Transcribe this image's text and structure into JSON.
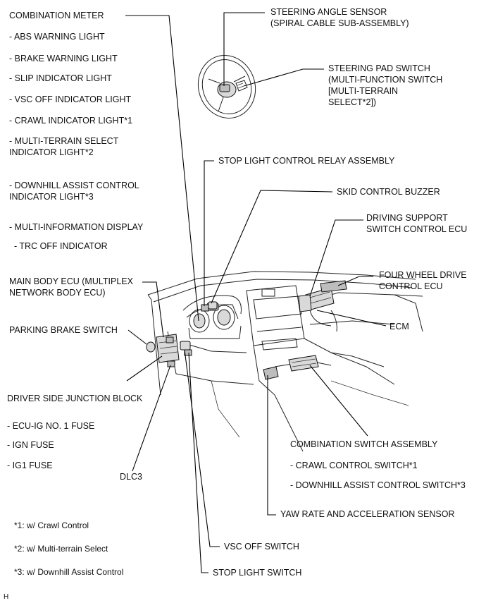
{
  "labels": {
    "combination_meter": "COMBINATION METER",
    "abs_warning": "- ABS WARNING LIGHT",
    "brake_warning": "- BRAKE WARNING LIGHT",
    "slip_indicator": "- SLIP INDICATOR LIGHT",
    "vsc_off_indicator": "- VSC OFF INDICATOR LIGHT",
    "crawl_indicator": "- CRAWL INDICATOR LIGHT*1",
    "mts_indicator_1": "- MULTI-TERRAIN SELECT",
    "mts_indicator_2": "INDICATOR LIGHT*2",
    "dac_indicator_1": "- DOWNHILL ASSIST CONTROL",
    "dac_indicator_2": "INDICATOR LIGHT*3",
    "multi_info": "- MULTI-INFORMATION DISPLAY",
    "trc_off": "- TRC OFF INDICATOR",
    "main_body_ecu_1": "MAIN BODY ECU (MULTIPLEX",
    "main_body_ecu_2": "NETWORK BODY ECU)",
    "parking_brake": "PARKING BRAKE SWITCH",
    "driver_jb": "DRIVER SIDE JUNCTION BLOCK",
    "ecu_ig_fuse": "- ECU-IG NO. 1 FUSE",
    "ign_fuse": "- IGN FUSE",
    "ig1_fuse": "- IG1 FUSE",
    "dlc3": "DLC3",
    "note1": "*1: w/ Crawl Control",
    "note2": "*2: w/ Multi-terrain Select",
    "note3": "*3: w/ Downhill Assist Control",
    "steering_angle_1": "STEERING ANGLE SENSOR",
    "steering_angle_2": "(SPIRAL CABLE SUB-ASSEMBLY)",
    "steering_pad_1": "STEERING PAD SWITCH",
    "steering_pad_2": "(MULTI-FUNCTION SWITCH",
    "steering_pad_3": "[MULTI-TERRAIN",
    "steering_pad_4": "SELECT*2])",
    "stop_light_relay": "STOP LIGHT CONTROL RELAY ASSEMBLY",
    "skid_buzzer": "SKID CONTROL BUZZER",
    "driving_support_1": "DRIVING SUPPORT",
    "driving_support_2": "SWITCH CONTROL ECU",
    "four_wd_1": "FOUR WHEEL DRIVE",
    "four_wd_2": "CONTROL ECU",
    "ecm": "ECM",
    "combo_switch": "COMBINATION SWITCH ASSEMBLY",
    "crawl_switch": "- CRAWL CONTROL SWITCH*1",
    "dac_switch": "- DOWNHILL ASSIST CONTROL SWITCH*3",
    "yaw_rate": "YAW RATE AND ACCELERATION SENSOR",
    "vsc_off_switch": "VSC OFF SWITCH",
    "stop_light_switch": "STOP LIGHT SWITCH",
    "corner_mark": "H"
  }
}
